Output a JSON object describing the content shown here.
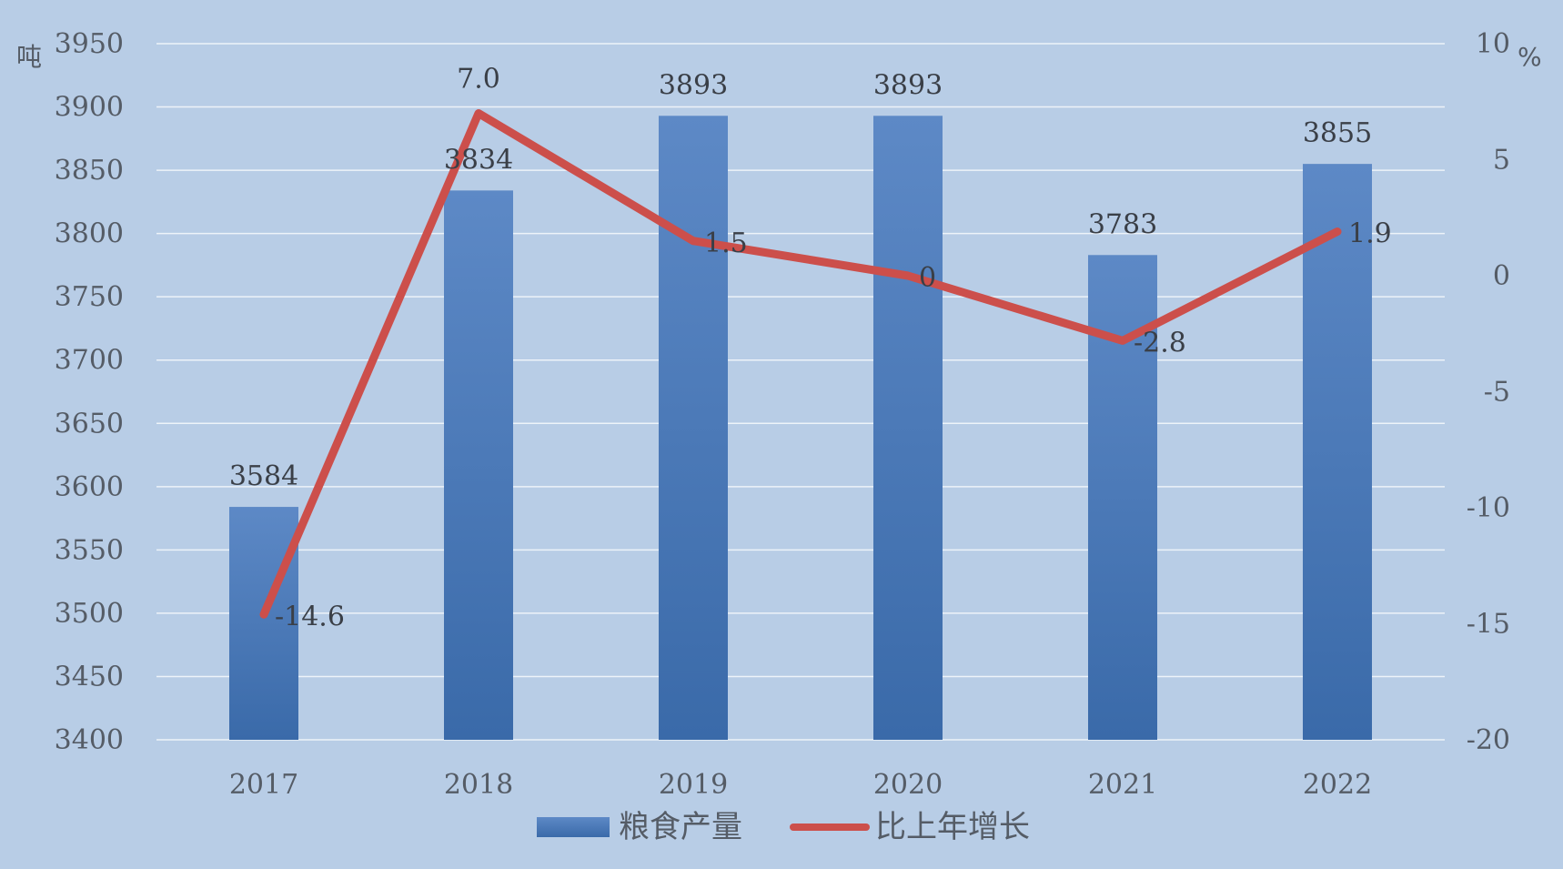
{
  "chart_data": {
    "type": "bar",
    "categories": [
      "2017",
      "2018",
      "2019",
      "2020",
      "2021",
      "2022"
    ],
    "series": [
      {
        "name": "粮食产量",
        "type": "bar",
        "axis": "left",
        "values": [
          3584,
          3834,
          3893,
          3893,
          3783,
          3855
        ],
        "labels": [
          "3584",
          "3834",
          "3893",
          "3893",
          "3783",
          "3855"
        ]
      },
      {
        "name": "比上年增长",
        "type": "line",
        "axis": "right",
        "values": [
          -14.6,
          7.0,
          1.5,
          0,
          -2.8,
          1.9
        ],
        "labels": [
          "-14.6",
          "7.0",
          "1.5",
          "0",
          "-2.8",
          "1.9"
        ]
      }
    ],
    "y_left": {
      "unit": "吨",
      "min": 3400,
      "max": 3950,
      "step": 50
    },
    "y_right": {
      "unit": "%",
      "min": -20,
      "max": 10,
      "step": 5
    },
    "grid": true,
    "legend_position": "bottom-center",
    "colors": {
      "background": "#b8cde6",
      "bar_top": "#5d89c6",
      "bar_bottom": "#3a6aa9",
      "line": "#cc4f4b",
      "grid": "#ffffff"
    }
  }
}
